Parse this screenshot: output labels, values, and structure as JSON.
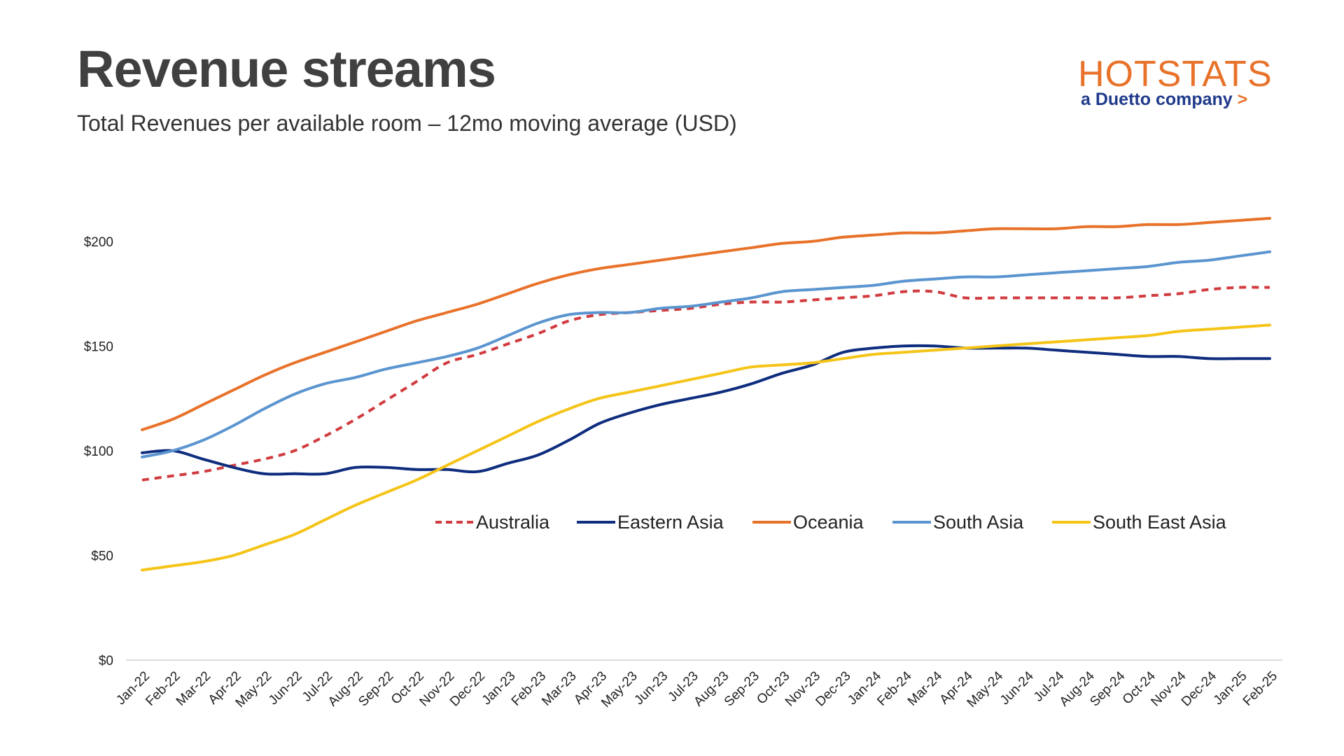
{
  "header": {
    "title": "Revenue streams",
    "subtitle": "Total Revenues per available room – 12mo moving average (USD)"
  },
  "logo": {
    "name": "HOTSTATS",
    "tagline": "a Duetto company",
    "arrow": ">",
    "colors": {
      "primary": "#e8722a",
      "secondary": "#1f3a8a"
    }
  },
  "chart_data": {
    "type": "line",
    "title": "",
    "xlabel": "",
    "ylabel": "",
    "ylim": [
      0,
      225
    ],
    "yticks": [
      0,
      50,
      100,
      150,
      200
    ],
    "ytick_labels": [
      "$0",
      "$50",
      "$100",
      "$150",
      "$200"
    ],
    "grid": false,
    "legend_position": "center",
    "categories": [
      "Jan-22",
      "Feb-22",
      "Mar-22",
      "Apr-22",
      "May-22",
      "Jun-22",
      "Jul-22",
      "Aug-22",
      "Sep-22",
      "Oct-22",
      "Nov-22",
      "Dec-22",
      "Jan-23",
      "Feb-23",
      "Mar-23",
      "Apr-23",
      "May-23",
      "Jun-23",
      "Jul-23",
      "Aug-23",
      "Sep-23",
      "Oct-23",
      "Nov-23",
      "Dec-23",
      "Jan-24",
      "Feb-24",
      "Mar-24",
      "Apr-24",
      "May-24",
      "Jun-24",
      "Jul-24",
      "Aug-24",
      "Sep-24",
      "Oct-24",
      "Nov-24",
      "Dec-24",
      "Jan-25",
      "Feb-25"
    ],
    "series": [
      {
        "name": "Australia",
        "color": "#d13b3f",
        "dashed": true,
        "values": [
          86,
          88,
          90,
          93,
          96,
          100,
          107,
          115,
          124,
          133,
          142,
          146,
          151,
          156,
          162,
          165,
          166,
          167,
          168,
          170,
          171,
          171,
          172,
          173,
          174,
          176,
          176,
          173,
          173,
          173,
          173,
          173,
          173,
          174,
          175,
          177,
          178,
          178
        ]
      },
      {
        "name": "Eastern Asia",
        "color": "#0e2d7e",
        "dashed": false,
        "values": [
          99,
          100,
          96,
          92,
          89,
          89,
          89,
          92,
          92,
          91,
          91,
          90,
          94,
          98,
          105,
          113,
          118,
          122,
          125,
          128,
          132,
          137,
          141,
          147,
          149,
          150,
          150,
          149,
          149,
          149,
          148,
          147,
          146,
          145,
          145,
          144,
          144,
          144
        ]
      },
      {
        "name": "Oceania",
        "color": "#e8722a",
        "dashed": false,
        "values": [
          110,
          115,
          122,
          129,
          136,
          142,
          147,
          152,
          157,
          162,
          166,
          170,
          175,
          180,
          184,
          187,
          189,
          191,
          193,
          195,
          197,
          199,
          200,
          202,
          203,
          204,
          204,
          205,
          206,
          206,
          206,
          207,
          207,
          208,
          208,
          209,
          210,
          211
        ]
      },
      {
        "name": "South Asia",
        "color": "#5b95d0",
        "dashed": false,
        "values": [
          97,
          100,
          105,
          112,
          120,
          127,
          132,
          135,
          139,
          142,
          145,
          149,
          155,
          161,
          165,
          166,
          166,
          168,
          169,
          171,
          173,
          176,
          177,
          178,
          179,
          181,
          182,
          183,
          183,
          184,
          185,
          186,
          187,
          188,
          190,
          191,
          193,
          195
        ]
      },
      {
        "name": "South East Asia",
        "color": "#f5c418",
        "dashed": false,
        "values": [
          43,
          45,
          47,
          50,
          55,
          60,
          67,
          74,
          80,
          86,
          93,
          100,
          107,
          114,
          120,
          125,
          128,
          131,
          134,
          137,
          140,
          141,
          142,
          144,
          146,
          147,
          148,
          149,
          150,
          151,
          152,
          153,
          154,
          155,
          157,
          158,
          159,
          160
        ]
      }
    ]
  }
}
